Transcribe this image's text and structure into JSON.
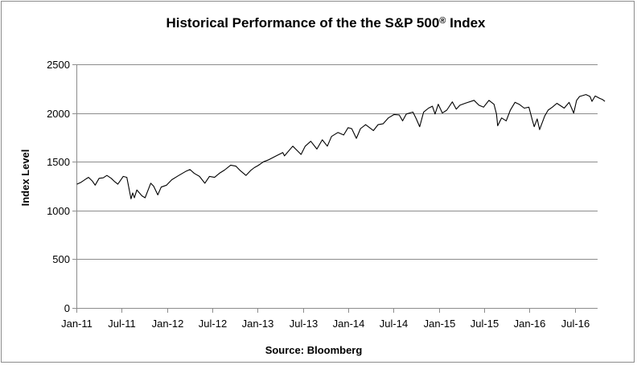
{
  "chart_data": {
    "type": "line",
    "title": "Historical Performance of the the S&P 500",
    "title_mark": "®",
    "title_suffix": " Index",
    "ylabel": "Index Level",
    "xlabel": "",
    "source": "Source: Bloomberg",
    "ylim": [
      0,
      2500
    ],
    "yticks": [
      0,
      500,
      1000,
      1500,
      2000,
      2500
    ],
    "xlim": [
      "2011-01",
      "2016-10"
    ],
    "xticks": [
      {
        "date": "2011-01",
        "label": "Jan-11"
      },
      {
        "date": "2011-07",
        "label": "Jul-11"
      },
      {
        "date": "2012-01",
        "label": "Jan-12"
      },
      {
        "date": "2012-07",
        "label": "Jul-12"
      },
      {
        "date": "2013-01",
        "label": "Jan-13"
      },
      {
        "date": "2013-07",
        "label": "Jul-13"
      },
      {
        "date": "2014-01",
        "label": "Jan-14"
      },
      {
        "date": "2014-07",
        "label": "Jul-14"
      },
      {
        "date": "2015-01",
        "label": "Jan-15"
      },
      {
        "date": "2015-07",
        "label": "Jul-15"
      },
      {
        "date": "2016-01",
        "label": "Jan-16"
      },
      {
        "date": "2016-07",
        "label": "Jul-16"
      }
    ],
    "grid": "horizontal",
    "legend": "none",
    "line_color": "#000000",
    "grid_color": "#8c8c8c",
    "series": [
      {
        "x": [
          "2011-01-03",
          "2011-01-20",
          "2011-02-10",
          "2011-02-20",
          "2011-03-05",
          "2011-03-16",
          "2011-04-01",
          "2011-04-18",
          "2011-05-02",
          "2011-05-20",
          "2011-06-01",
          "2011-06-16",
          "2011-07-07",
          "2011-07-22",
          "2011-08-08",
          "2011-08-15",
          "2011-08-22",
          "2011-09-01",
          "2011-09-22",
          "2011-10-04",
          "2011-10-27",
          "2011-11-08",
          "2011-11-25",
          "2011-12-08",
          "2011-12-30",
          "2012-01-20",
          "2012-02-15",
          "2012-03-15",
          "2012-04-02",
          "2012-04-20",
          "2012-05-10",
          "2012-06-01",
          "2012-06-20",
          "2012-07-10",
          "2012-08-01",
          "2012-08-20",
          "2012-09-14",
          "2012-10-05",
          "2012-10-22",
          "2012-11-15",
          "2012-12-03",
          "2012-12-18",
          "2013-01-02",
          "2013-01-25",
          "2013-02-15",
          "2013-03-15",
          "2013-04-11",
          "2013-04-18",
          "2013-05-21",
          "2013-06-10",
          "2013-06-24",
          "2013-07-10",
          "2013-08-02",
          "2013-08-27",
          "2013-09-18",
          "2013-10-08",
          "2013-10-25",
          "2013-11-20",
          "2013-12-13",
          "2013-12-31",
          "2014-01-15",
          "2014-02-03",
          "2014-02-20",
          "2014-03-10",
          "2014-04-11",
          "2014-04-30",
          "2014-05-20",
          "2014-06-10",
          "2014-07-03",
          "2014-07-24",
          "2014-08-07",
          "2014-08-22",
          "2014-09-18",
          "2014-10-01",
          "2014-10-15",
          "2014-10-31",
          "2014-11-20",
          "2014-12-05",
          "2014-12-16",
          "2014-12-29",
          "2015-01-15",
          "2015-02-02",
          "2015-02-25",
          "2015-03-10",
          "2015-03-25",
          "2015-04-15",
          "2015-05-21",
          "2015-06-10",
          "2015-06-29",
          "2015-07-20",
          "2015-08-10",
          "2015-08-20",
          "2015-08-25",
          "2015-09-10",
          "2015-09-29",
          "2015-10-15",
          "2015-11-03",
          "2015-11-20",
          "2015-12-10",
          "2015-12-29",
          "2016-01-12",
          "2016-01-20",
          "2016-02-01",
          "2016-02-11",
          "2016-03-01",
          "2016-03-15",
          "2016-04-01",
          "2016-04-20",
          "2016-05-19",
          "2016-06-08",
          "2016-06-27",
          "2016-07-08",
          "2016-07-20",
          "2016-08-15",
          "2016-09-01",
          "2016-09-09",
          "2016-09-22",
          "2016-10-10",
          "2016-10-20",
          "2016-10-31"
        ],
        "y": [
          1270,
          1290,
          1325,
          1340,
          1300,
          1260,
          1330,
          1335,
          1360,
          1330,
          1300,
          1270,
          1350,
          1340,
          1120,
          1180,
          1130,
          1210,
          1150,
          1130,
          1280,
          1250,
          1160,
          1240,
          1260,
          1315,
          1355,
          1400,
          1420,
          1380,
          1350,
          1280,
          1350,
          1340,
          1385,
          1415,
          1465,
          1455,
          1410,
          1360,
          1410,
          1440,
          1460,
          1500,
          1520,
          1560,
          1595,
          1560,
          1660,
          1610,
          1575,
          1660,
          1710,
          1630,
          1725,
          1660,
          1760,
          1800,
          1775,
          1850,
          1840,
          1740,
          1840,
          1880,
          1820,
          1880,
          1890,
          1950,
          1985,
          1980,
          1920,
          1990,
          2010,
          1940,
          1860,
          2010,
          2050,
          2070,
          1990,
          2090,
          2000,
          2030,
          2115,
          2040,
          2080,
          2100,
          2130,
          2080,
          2060,
          2130,
          2090,
          1990,
          1870,
          1950,
          1920,
          2030,
          2110,
          2090,
          2050,
          2060,
          1930,
          1860,
          1940,
          1830,
          1970,
          2030,
          2060,
          2100,
          2050,
          2110,
          2000,
          2130,
          2170,
          2190,
          2170,
          2120,
          2175,
          2150,
          2140,
          2120
        ]
      }
    ]
  }
}
